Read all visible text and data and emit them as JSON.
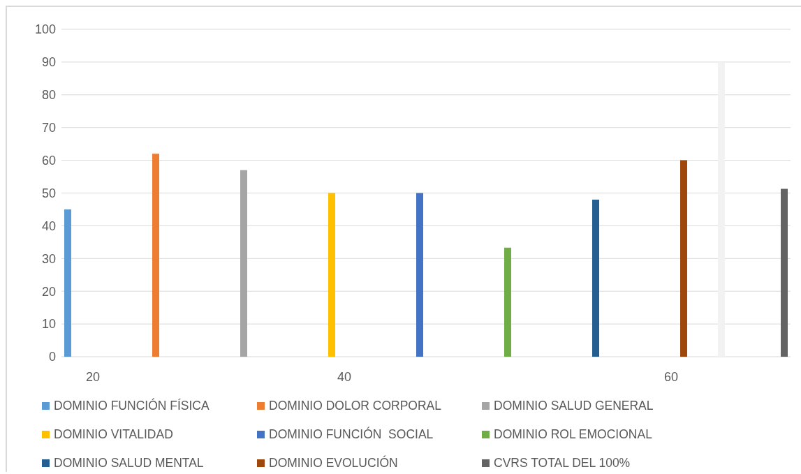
{
  "chart_data": {
    "type": "bar",
    "categories": [
      null,
      null,
      "20",
      null,
      null,
      null,
      null,
      null,
      null,
      null,
      null,
      null,
      null,
      null,
      null,
      null,
      null,
      null,
      null,
      null,
      null,
      null,
      "40",
      null,
      null,
      null,
      null,
      null,
      null,
      null,
      null,
      null,
      null,
      null,
      null,
      null,
      null,
      null,
      null,
      null,
      null,
      null,
      null,
      null,
      null,
      null,
      null,
      null,
      "60",
      null,
      null,
      null,
      null,
      null,
      null,
      null,
      null,
      null
    ],
    "series": [
      {
        "name": "DOMINIO FUNCIÓN FÍSICA",
        "color": "#5b9bd5",
        "values": [
          45,
          null,
          null,
          null,
          null,
          null,
          null,
          null,
          null,
          null,
          null,
          null,
          null,
          null,
          null,
          null,
          null,
          null,
          null,
          null,
          null,
          null,
          null,
          null,
          null,
          null,
          null,
          null,
          null,
          null,
          null,
          null,
          null,
          null,
          null,
          null,
          null,
          null,
          null,
          null,
          null,
          null,
          null,
          null,
          null,
          null,
          null,
          null,
          null,
          null,
          null,
          null,
          null,
          null,
          null,
          null,
          null,
          null
        ]
      },
      {
        "name": "DOMINIO DOLOR CORPORAL",
        "color": "#ed7d31",
        "values": [
          null,
          null,
          null,
          null,
          null,
          null,
          null,
          62,
          null,
          null,
          null,
          null,
          null,
          null,
          null,
          null,
          null,
          null,
          null,
          null,
          null,
          null,
          null,
          null,
          null,
          null,
          null,
          null,
          null,
          null,
          null,
          null,
          null,
          null,
          null,
          null,
          null,
          null,
          null,
          null,
          null,
          null,
          null,
          null,
          null,
          null,
          null,
          null,
          null,
          null,
          null,
          null,
          null,
          null,
          null,
          null,
          null,
          null
        ]
      },
      {
        "name": "DOMINIO SALUD GENERAL",
        "color": "#a5a5a5",
        "values": [
          null,
          null,
          null,
          null,
          null,
          null,
          null,
          null,
          null,
          null,
          null,
          null,
          null,
          null,
          57,
          null,
          null,
          null,
          null,
          null,
          null,
          null,
          null,
          null,
          null,
          null,
          null,
          null,
          null,
          null,
          null,
          null,
          null,
          null,
          null,
          null,
          null,
          null,
          null,
          null,
          null,
          null,
          null,
          null,
          null,
          null,
          null,
          null,
          null,
          null,
          null,
          null,
          null,
          null,
          null,
          null,
          null,
          null
        ]
      },
      {
        "name": "DOMINIO VITALIDAD",
        "color": "#ffc000",
        "values": [
          null,
          null,
          null,
          null,
          null,
          null,
          null,
          null,
          null,
          null,
          null,
          null,
          null,
          null,
          null,
          null,
          null,
          null,
          null,
          null,
          null,
          50,
          null,
          null,
          null,
          null,
          null,
          null,
          null,
          null,
          null,
          null,
          null,
          null,
          null,
          null,
          null,
          null,
          null,
          null,
          null,
          null,
          null,
          null,
          null,
          null,
          null,
          null,
          null,
          null,
          null,
          null,
          null,
          null,
          null,
          null,
          null,
          null
        ]
      },
      {
        "name": "DOMINIO FUNCIÓN  SOCIAL",
        "color": "#4472c4",
        "values": [
          null,
          null,
          null,
          null,
          null,
          null,
          null,
          null,
          null,
          null,
          null,
          null,
          null,
          null,
          null,
          null,
          null,
          null,
          null,
          null,
          null,
          null,
          null,
          null,
          null,
          null,
          null,
          null,
          50,
          null,
          null,
          null,
          null,
          null,
          null,
          null,
          null,
          null,
          null,
          null,
          null,
          null,
          null,
          null,
          null,
          null,
          null,
          null,
          null,
          null,
          null,
          null,
          null,
          null,
          null,
          null,
          null,
          null
        ]
      },
      {
        "name": "DOMINIO ROL EMOCIONAL",
        "color": "#70ad47",
        "values": [
          null,
          null,
          null,
          null,
          null,
          null,
          null,
          null,
          null,
          null,
          null,
          null,
          null,
          null,
          null,
          null,
          null,
          null,
          null,
          null,
          null,
          null,
          null,
          null,
          null,
          null,
          null,
          null,
          null,
          null,
          null,
          null,
          null,
          null,
          null,
          33.3,
          null,
          null,
          null,
          null,
          null,
          null,
          null,
          null,
          null,
          null,
          null,
          null,
          null,
          null,
          null,
          null,
          null,
          null,
          null,
          null,
          null,
          null
        ]
      },
      {
        "name": "DOMINIO SALUD MENTAL",
        "color": "#255e91",
        "values": [
          null,
          null,
          null,
          null,
          null,
          null,
          null,
          null,
          null,
          null,
          null,
          null,
          null,
          null,
          null,
          null,
          null,
          null,
          null,
          null,
          null,
          null,
          null,
          null,
          null,
          null,
          null,
          null,
          null,
          null,
          null,
          null,
          null,
          null,
          null,
          null,
          null,
          null,
          null,
          null,
          null,
          null,
          48,
          null,
          null,
          null,
          null,
          null,
          null,
          null,
          null,
          null,
          null,
          null,
          null,
          null,
          null,
          null
        ]
      },
      {
        "name": "DOMINIO EVOLUCIÓN",
        "color": "#9e480e",
        "values": [
          null,
          null,
          null,
          null,
          null,
          null,
          null,
          null,
          null,
          null,
          null,
          null,
          null,
          null,
          null,
          null,
          null,
          null,
          null,
          null,
          null,
          null,
          null,
          null,
          null,
          null,
          null,
          null,
          null,
          null,
          null,
          null,
          null,
          null,
          null,
          null,
          null,
          null,
          null,
          null,
          null,
          null,
          null,
          null,
          null,
          null,
          null,
          null,
          null,
          60,
          null,
          null,
          null,
          null,
          null,
          null,
          null,
          null
        ]
      },
      {
        "color": "#f2f2f2",
        "values": [
          null,
          null,
          null,
          null,
          null,
          null,
          null,
          null,
          null,
          null,
          null,
          null,
          null,
          null,
          null,
          null,
          null,
          null,
          null,
          null,
          null,
          null,
          null,
          null,
          null,
          null,
          null,
          null,
          null,
          null,
          null,
          null,
          null,
          null,
          null,
          null,
          null,
          null,
          null,
          null,
          null,
          null,
          null,
          null,
          null,
          null,
          null,
          null,
          null,
          null,
          null,
          null,
          90,
          null,
          null,
          null,
          null,
          null
        ]
      },
      {
        "name": "CVRS TOTAL DEL 100%",
        "color": "#636363",
        "values": [
          null,
          null,
          null,
          null,
          null,
          null,
          null,
          null,
          null,
          null,
          null,
          null,
          null,
          null,
          null,
          null,
          null,
          null,
          null,
          null,
          null,
          null,
          null,
          null,
          null,
          null,
          null,
          null,
          null,
          null,
          null,
          null,
          null,
          null,
          null,
          null,
          null,
          null,
          null,
          null,
          null,
          null,
          null,
          null,
          null,
          null,
          null,
          null,
          null,
          null,
          null,
          null,
          null,
          null,
          null,
          null,
          null,
          51.3
        ]
      }
    ],
    "ylim": [
      0,
      100
    ],
    "yticks": [
      0,
      10,
      20,
      30,
      40,
      50,
      60,
      70,
      80,
      90,
      100
    ],
    "grid": "y",
    "legend": "bottom"
  }
}
